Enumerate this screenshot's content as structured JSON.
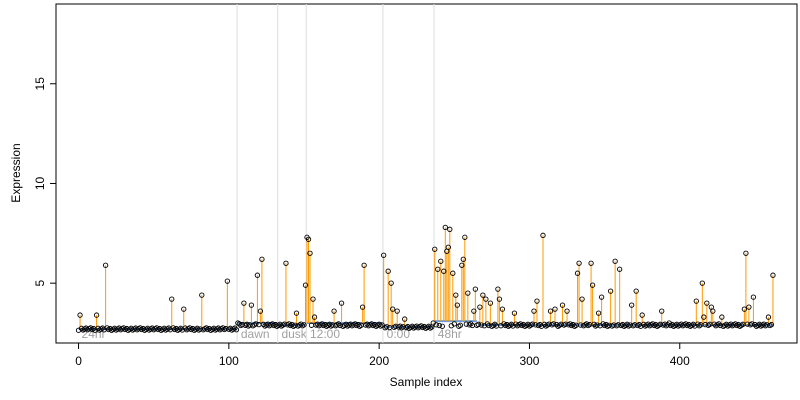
{
  "chart_data": {
    "type": "scatter",
    "title": "",
    "xlabel": "Sample index",
    "ylabel": "Expression",
    "xlim": [
      -15,
      478
    ],
    "ylim": [
      2.0,
      19.0
    ],
    "x_ticks": [
      0,
      100,
      200,
      300,
      400
    ],
    "y_ticks": [
      5,
      10,
      15
    ],
    "grid": false,
    "legend": "none",
    "colors": {
      "points_stroke": "#000000",
      "deviation_segments": "#ff9900",
      "baseline_step": "#6a9bd8",
      "region_dividers": "#dddddd",
      "region_labels": "#a0a0a0"
    },
    "regions": [
      {
        "label": "24hr",
        "start": 0
      },
      {
        "label": "dawn",
        "start": 106
      },
      {
        "label": "dusk",
        "start": 133
      },
      {
        "label": "12:00",
        "start": 152
      },
      {
        "label": "0:00",
        "start": 203
      },
      {
        "label": "48hr",
        "start": 237
      }
    ],
    "baseline_segments": [
      {
        "x0": 0,
        "x1": 105,
        "y": 2.7
      },
      {
        "x0": 106,
        "x1": 132,
        "y": 3.0
      },
      {
        "x0": 133,
        "x1": 151,
        "y": 2.9
      },
      {
        "x0": 152,
        "x1": 202,
        "y": 3.0
      },
      {
        "x0": 203,
        "x1": 236,
        "y": 2.8
      },
      {
        "x0": 237,
        "x1": 265,
        "y": 3.1
      },
      {
        "x0": 266,
        "x1": 462,
        "y": 2.9
      }
    ],
    "background_level": 2.75,
    "highlight_points": [
      [
        1,
        3.4
      ],
      [
        12,
        3.4
      ],
      [
        18,
        5.9
      ],
      [
        62,
        4.2
      ],
      [
        70,
        3.7
      ],
      [
        82,
        4.4
      ],
      [
        99,
        5.1
      ],
      [
        106,
        3.0
      ],
      [
        110,
        4.0
      ],
      [
        115,
        3.9
      ],
      [
        119,
        5.4
      ],
      [
        121,
        3.6
      ],
      [
        122,
        6.2
      ],
      [
        138,
        6.0
      ],
      [
        145,
        3.5
      ],
      [
        151,
        4.9
      ],
      [
        152,
        7.3
      ],
      [
        153,
        7.2
      ],
      [
        154,
        6.5
      ],
      [
        156,
        4.2
      ],
      [
        157,
        3.3
      ],
      [
        170,
        3.6
      ],
      [
        175,
        4.0
      ],
      [
        189,
        3.8
      ],
      [
        190,
        5.9
      ],
      [
        203,
        6.4
      ],
      [
        206,
        5.6
      ],
      [
        208,
        5.0
      ],
      [
        209,
        3.7
      ],
      [
        212,
        3.6
      ],
      [
        217,
        3.2
      ],
      [
        236,
        3.0
      ],
      [
        237,
        6.7
      ],
      [
        239,
        5.7
      ],
      [
        241,
        6.1
      ],
      [
        243,
        5.6
      ],
      [
        244,
        7.8
      ],
      [
        245,
        6.6
      ],
      [
        246,
        6.8
      ],
      [
        247,
        7.7
      ],
      [
        249,
        5.5
      ],
      [
        251,
        4.4
      ],
      [
        252,
        3.9
      ],
      [
        255,
        5.9
      ],
      [
        256,
        6.2
      ],
      [
        257,
        7.3
      ],
      [
        259,
        4.5
      ],
      [
        263,
        3.6
      ],
      [
        264,
        4.7
      ],
      [
        267,
        3.8
      ],
      [
        269,
        4.4
      ],
      [
        271,
        4.2
      ],
      [
        274,
        4.0
      ],
      [
        279,
        4.7
      ],
      [
        280,
        4.2
      ],
      [
        282,
        3.7
      ],
      [
        290,
        3.5
      ],
      [
        303,
        3.6
      ],
      [
        305,
        4.1
      ],
      [
        309,
        7.4
      ],
      [
        314,
        3.6
      ],
      [
        317,
        3.7
      ],
      [
        322,
        3.9
      ],
      [
        325,
        3.6
      ],
      [
        332,
        5.5
      ],
      [
        333,
        6.0
      ],
      [
        335,
        4.2
      ],
      [
        341,
        6.0
      ],
      [
        342,
        4.9
      ],
      [
        346,
        3.5
      ],
      [
        348,
        4.3
      ],
      [
        354,
        4.6
      ],
      [
        357,
        6.1
      ],
      [
        360,
        5.7
      ],
      [
        368,
        3.9
      ],
      [
        371,
        4.6
      ],
      [
        375,
        3.4
      ],
      [
        388,
        3.6
      ],
      [
        393,
        3.0
      ],
      [
        411,
        4.1
      ],
      [
        415,
        5.0
      ],
      [
        416,
        3.3
      ],
      [
        418,
        4.0
      ],
      [
        421,
        3.8
      ],
      [
        422,
        3.6
      ],
      [
        428,
        3.3
      ],
      [
        443,
        3.7
      ],
      [
        444,
        6.5
      ],
      [
        446,
        3.8
      ],
      [
        449,
        4.3
      ],
      [
        459,
        3.3
      ],
      [
        462,
        5.4
      ]
    ]
  }
}
